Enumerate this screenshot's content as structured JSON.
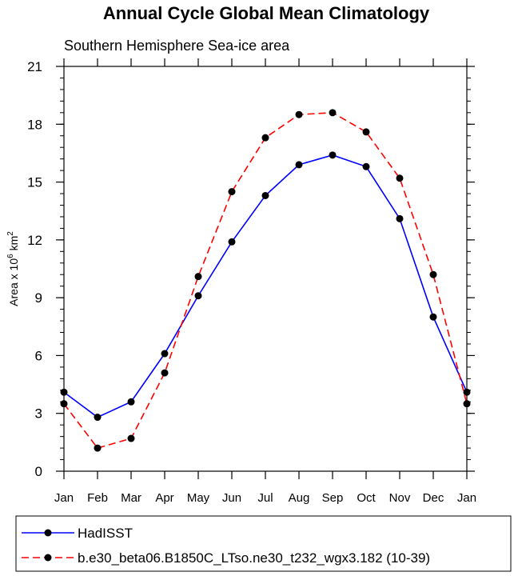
{
  "chart_data": {
    "type": "line",
    "title": "Annual Cycle Global Mean Climatology",
    "subtitle": "Southern Hemisphere Sea-ice area",
    "ylabel": {
      "prefix": "Area x 10",
      "exp1": "6",
      "mid": " km",
      "exp2": "2"
    },
    "xlabel": "",
    "categories": [
      "Jan",
      "Feb",
      "Mar",
      "Apr",
      "May",
      "Jun",
      "Jul",
      "Aug",
      "Sep",
      "Oct",
      "Nov",
      "Dec",
      "Jan"
    ],
    "ylim": [
      0,
      21
    ],
    "yticks": [
      0,
      3,
      6,
      9,
      12,
      15,
      18,
      21
    ],
    "yminor_step": 0.6,
    "grid": false,
    "legend_position": "bottom",
    "series": [
      {
        "name": "HadISST",
        "color": "#0000ff",
        "dash": "solid",
        "values": [
          4.1,
          2.8,
          3.6,
          6.1,
          9.1,
          11.9,
          14.3,
          15.9,
          16.4,
          15.8,
          13.1,
          8.0,
          4.1
        ]
      },
      {
        "name": "b.e30_beta06.B1850C_LTso.ne30_t232_wgx3.182 (10-39)",
        "color": "#ff0000",
        "dash": "dashed",
        "values": [
          3.5,
          1.2,
          1.7,
          5.1,
          10.1,
          14.5,
          17.3,
          18.5,
          18.6,
          17.6,
          15.2,
          10.2,
          3.5
        ]
      }
    ]
  }
}
